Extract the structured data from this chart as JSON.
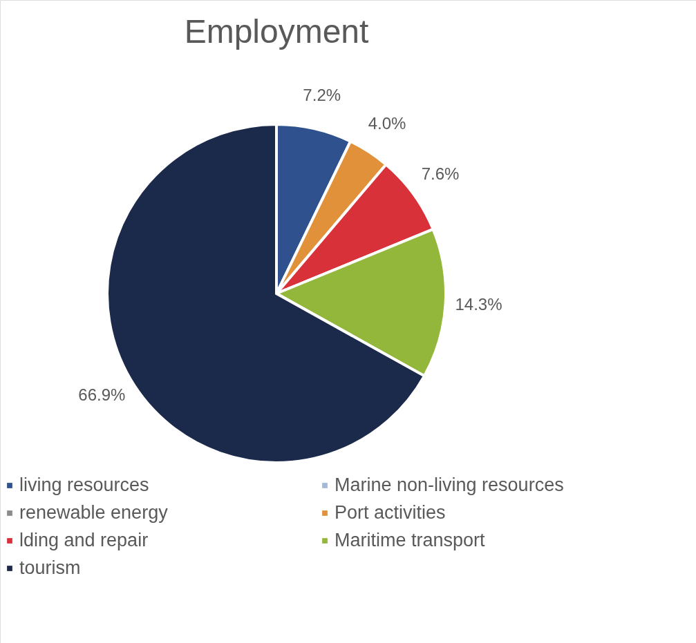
{
  "chart_data": {
    "type": "pie",
    "title": "Employment",
    "categories": [
      "living resources",
      "Marine non-living resources",
      "renewable energy",
      "Port activities",
      "lding and repair",
      "Maritime transport",
      "tourism"
    ],
    "values": [
      7.2,
      0,
      0,
      4.0,
      7.6,
      14.3,
      66.9
    ],
    "value_labels": [
      "7.2%",
      null,
      null,
      "4.0%",
      "7.6%",
      "14.3%",
      "66.9%"
    ],
    "colors": [
      "#2f528f",
      "#a5b8d8",
      "#8c8c8c",
      "#e0913a",
      "#d9313a",
      "#92b73a",
      "#1b2a4a"
    ],
    "legend": "bottom"
  }
}
